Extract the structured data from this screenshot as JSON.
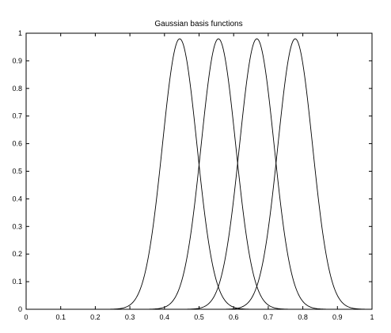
{
  "chart_data": {
    "type": "line",
    "title": "Gaussian basis functions",
    "xlabel": "",
    "ylabel": "",
    "xlim": [
      0,
      1
    ],
    "ylim": [
      0,
      1
    ],
    "xticks": [
      0,
      0.1,
      0.2,
      0.3,
      0.4,
      0.5,
      0.6,
      0.7,
      0.8,
      0.9,
      1
    ],
    "xtick_labels": [
      "0",
      "0.1",
      "0.2",
      "0.3",
      "0.4",
      "0.5",
      "0.6",
      "0.7",
      "0.8",
      "0.9",
      "1"
    ],
    "yticks": [
      0,
      0.1,
      0.2,
      0.3,
      0.4,
      0.5,
      0.6,
      0.7,
      0.8,
      0.9,
      1
    ],
    "ytick_labels": [
      "0",
      "0.1",
      "0.2",
      "0.3",
      "0.4",
      "0.5",
      "0.6",
      "0.7",
      "0.8",
      "0.9",
      "1"
    ],
    "grid": false,
    "line_color": "#000000",
    "series": [
      {
        "function": "gaussian",
        "center": 0.444,
        "sigma": 0.05,
        "amplitude": 0.98
      },
      {
        "function": "gaussian",
        "center": 0.556,
        "sigma": 0.05,
        "amplitude": 0.98
      },
      {
        "function": "gaussian",
        "center": 0.667,
        "sigma": 0.05,
        "amplitude": 0.98
      },
      {
        "function": "gaussian",
        "center": 0.778,
        "sigma": 0.05,
        "amplitude": 0.98
      }
    ]
  }
}
